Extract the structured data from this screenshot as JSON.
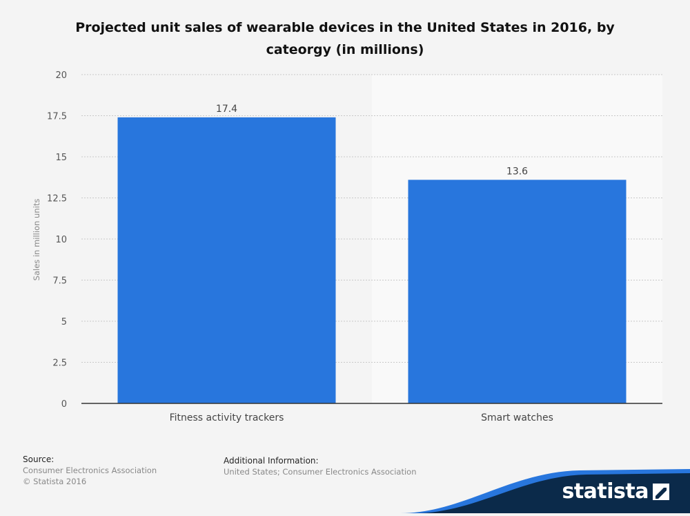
{
  "chart_data": {
    "type": "bar",
    "title": "Projected unit sales of wearable devices in the United States in 2016, by cateorgy (in millions)",
    "categories": [
      "Fitness activity trackers",
      "Smart watches"
    ],
    "values": [
      17.4,
      13.6
    ],
    "value_labels": [
      "17.4",
      "13.6"
    ],
    "ylabel": "Sales in million units",
    "ylim": [
      0,
      20
    ],
    "yticks": [
      "0",
      "2.5",
      "5",
      "7.5",
      "10",
      "12.5",
      "15",
      "17.5",
      "20"
    ],
    "grid": true,
    "bar_color": "#2876dd"
  },
  "footer": {
    "source_heading": "Source:",
    "source_lines": [
      "Consumer Electronics Association",
      "© Statista 2016"
    ],
    "additional_heading": "Additional Information:",
    "additional_text": "United States; Consumer Electronics Association"
  },
  "brand": {
    "name": "statista",
    "colors": {
      "dark": "#0b2a4a",
      "accent": "#2876dd"
    }
  }
}
